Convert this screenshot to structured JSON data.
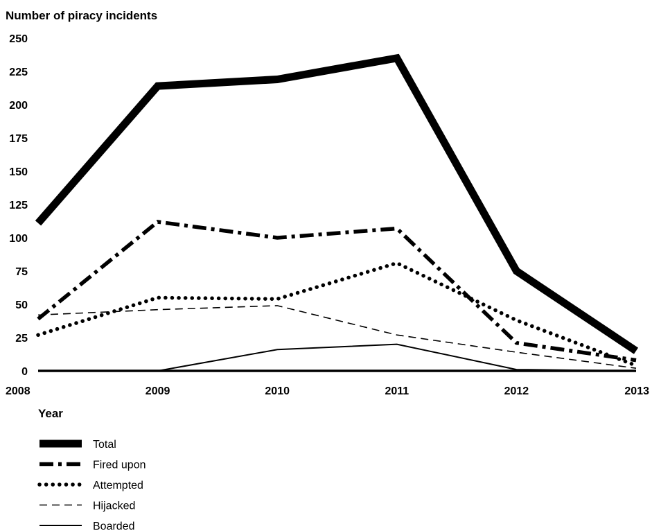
{
  "chart_data": {
    "type": "line",
    "ylabel": "Number of piracy incidents",
    "xlabel": "Year",
    "x": [
      "2008",
      "2009",
      "2010",
      "2011",
      "2012",
      "2013"
    ],
    "ylim": [
      0,
      250
    ],
    "yticks": [
      0,
      25,
      50,
      75,
      100,
      125,
      150,
      175,
      200,
      225,
      250
    ],
    "grid": false,
    "legend_position": "bottom-left",
    "series": [
      {
        "name": "Total",
        "style": "solid-heavy",
        "values": [
          111,
          214,
          219,
          235,
          75,
          15
        ]
      },
      {
        "name": "Fired upon",
        "style": "dash-dot",
        "values": [
          39,
          112,
          100,
          107,
          21,
          8
        ]
      },
      {
        "name": "Attempted",
        "style": "dotted",
        "values": [
          27,
          55,
          54,
          81,
          38,
          4
        ]
      },
      {
        "name": "Hijacked",
        "style": "dashed",
        "values": [
          42,
          46,
          49,
          27,
          14,
          2
        ]
      },
      {
        "name": "Boarded",
        "style": "solid-thin",
        "values": [
          0,
          0,
          16,
          20,
          1,
          0
        ]
      }
    ],
    "colors": {
      "line": "#000000",
      "background": "#ffffff"
    }
  }
}
